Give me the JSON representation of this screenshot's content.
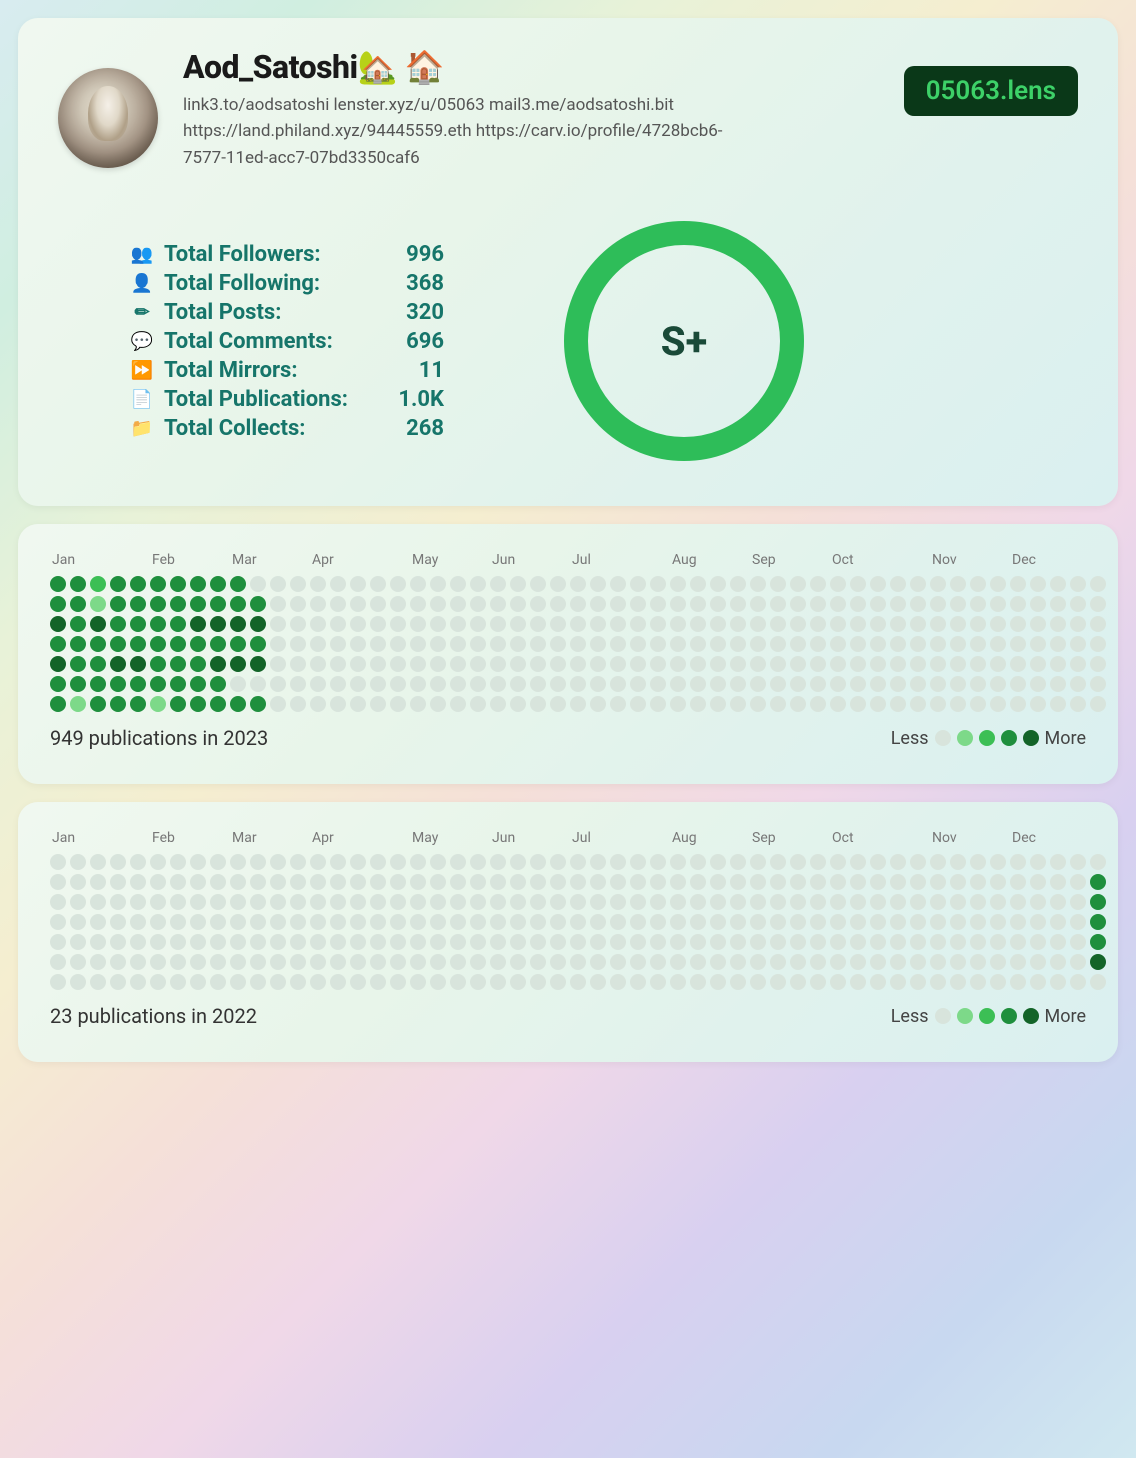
{
  "profile": {
    "display_name": "Aod_Satoshi🏡 🏠",
    "bio": "link3.to/aodsatoshi lenster.xyz/u/05063 mail3.me/aodsatoshi.bit https://land.philand.xyz/94445559.eth https://carv.io/profile/4728bcb6-7577-11ed-acc7-07bd3350caf6",
    "handle_badge": "05063.lens",
    "badge_bg": "#0a3818",
    "badge_fg": "#3dd168"
  },
  "stats": [
    {
      "icon": "followers-icon",
      "label": "Total Followers:",
      "value": "996"
    },
    {
      "icon": "following-icon",
      "label": "Total Following:",
      "value": "368"
    },
    {
      "icon": "posts-icon",
      "label": "Total Posts:",
      "value": "320"
    },
    {
      "icon": "comments-icon",
      "label": "Total Comments:",
      "value": "696"
    },
    {
      "icon": "mirrors-icon",
      "label": "Total Mirrors:",
      "value": "11"
    },
    {
      "icon": "publications-icon",
      "label": "Total Publications:",
      "value": "1.0K"
    },
    {
      "icon": "collects-icon",
      "label": "Total Collects:",
      "value": "268"
    }
  ],
  "stat_color": "#16756a",
  "grade": {
    "letter": "S+",
    "ring_color": "#2ebd59",
    "ring_width": 24,
    "ring_diameter": 240
  },
  "contribution_years": [
    {
      "months": [
        "Jan",
        "Feb",
        "Mar",
        "Apr",
        "May",
        "Jun",
        "Jul",
        "Aug",
        "Sep",
        "Oct",
        "Nov",
        "Dec"
      ],
      "summary": "949 publications in 2023",
      "weeks": 53,
      "active_weeks": 11,
      "levels_palette": [
        "#d8e4dc",
        "#7dd989",
        "#3cbf55",
        "#1f8f3d",
        "#136428"
      ],
      "data": [
        [
          3,
          3,
          2,
          3,
          3,
          3,
          3,
          3,
          3,
          3,
          0,
          0,
          0,
          0,
          0,
          0,
          0,
          0,
          0,
          0,
          0,
          0,
          0,
          0,
          0,
          0,
          0,
          0,
          0,
          0,
          0,
          0,
          0,
          0,
          0,
          0,
          0,
          0,
          0,
          0,
          0,
          0,
          0,
          0,
          0,
          0,
          0,
          0,
          0,
          0,
          0,
          0,
          0
        ],
        [
          3,
          3,
          1,
          3,
          3,
          3,
          3,
          3,
          3,
          3,
          3,
          0,
          0,
          0,
          0,
          0,
          0,
          0,
          0,
          0,
          0,
          0,
          0,
          0,
          0,
          0,
          0,
          0,
          0,
          0,
          0,
          0,
          0,
          0,
          0,
          0,
          0,
          0,
          0,
          0,
          0,
          0,
          0,
          0,
          0,
          0,
          0,
          0,
          0,
          0,
          0,
          0,
          0
        ],
        [
          4,
          3,
          4,
          3,
          3,
          3,
          3,
          4,
          4,
          4,
          4,
          0,
          0,
          0,
          0,
          0,
          0,
          0,
          0,
          0,
          0,
          0,
          0,
          0,
          0,
          0,
          0,
          0,
          0,
          0,
          0,
          0,
          0,
          0,
          0,
          0,
          0,
          0,
          0,
          0,
          0,
          0,
          0,
          0,
          0,
          0,
          0,
          0,
          0,
          0,
          0,
          0,
          0
        ],
        [
          3,
          3,
          3,
          3,
          3,
          3,
          3,
          3,
          3,
          3,
          3,
          0,
          0,
          0,
          0,
          0,
          0,
          0,
          0,
          0,
          0,
          0,
          0,
          0,
          0,
          0,
          0,
          0,
          0,
          0,
          0,
          0,
          0,
          0,
          0,
          0,
          0,
          0,
          0,
          0,
          0,
          0,
          0,
          0,
          0,
          0,
          0,
          0,
          0,
          0,
          0,
          0,
          0
        ],
        [
          4,
          3,
          3,
          4,
          4,
          3,
          3,
          3,
          4,
          4,
          4,
          0,
          0,
          0,
          0,
          0,
          0,
          0,
          0,
          0,
          0,
          0,
          0,
          0,
          0,
          0,
          0,
          0,
          0,
          0,
          0,
          0,
          0,
          0,
          0,
          0,
          0,
          0,
          0,
          0,
          0,
          0,
          0,
          0,
          0,
          0,
          0,
          0,
          0,
          0,
          0,
          0,
          0
        ],
        [
          3,
          3,
          3,
          3,
          3,
          3,
          3,
          3,
          3,
          0,
          0,
          0,
          0,
          0,
          0,
          0,
          0,
          0,
          0,
          0,
          0,
          0,
          0,
          0,
          0,
          0,
          0,
          0,
          0,
          0,
          0,
          0,
          0,
          0,
          0,
          0,
          0,
          0,
          0,
          0,
          0,
          0,
          0,
          0,
          0,
          0,
          0,
          0,
          0,
          0,
          0,
          0,
          0
        ],
        [
          3,
          1,
          3,
          3,
          3,
          1,
          3,
          3,
          3,
          3,
          3,
          0,
          0,
          0,
          0,
          0,
          0,
          0,
          0,
          0,
          0,
          0,
          0,
          0,
          0,
          0,
          0,
          0,
          0,
          0,
          0,
          0,
          0,
          0,
          0,
          0,
          0,
          0,
          0,
          0,
          0,
          0,
          0,
          0,
          0,
          0,
          0,
          0,
          0,
          0,
          0,
          0,
          0
        ]
      ]
    },
    {
      "months": [
        "Jan",
        "Feb",
        "Mar",
        "Apr",
        "May",
        "Jun",
        "Jul",
        "Aug",
        "Sep",
        "Oct",
        "Nov",
        "Dec"
      ],
      "summary": "23 publications in 2022",
      "weeks": 53,
      "levels_palette": [
        "#d8e4dc",
        "#7dd989",
        "#3cbf55",
        "#1f8f3d",
        "#136428"
      ],
      "data": [
        [
          0,
          0,
          0,
          0,
          0,
          0,
          0,
          0,
          0,
          0,
          0,
          0,
          0,
          0,
          0,
          0,
          0,
          0,
          0,
          0,
          0,
          0,
          0,
          0,
          0,
          0,
          0,
          0,
          0,
          0,
          0,
          0,
          0,
          0,
          0,
          0,
          0,
          0,
          0,
          0,
          0,
          0,
          0,
          0,
          0,
          0,
          0,
          0,
          0,
          0,
          0,
          0,
          0
        ],
        [
          0,
          0,
          0,
          0,
          0,
          0,
          0,
          0,
          0,
          0,
          0,
          0,
          0,
          0,
          0,
          0,
          0,
          0,
          0,
          0,
          0,
          0,
          0,
          0,
          0,
          0,
          0,
          0,
          0,
          0,
          0,
          0,
          0,
          0,
          0,
          0,
          0,
          0,
          0,
          0,
          0,
          0,
          0,
          0,
          0,
          0,
          0,
          0,
          0,
          0,
          0,
          0,
          3
        ],
        [
          0,
          0,
          0,
          0,
          0,
          0,
          0,
          0,
          0,
          0,
          0,
          0,
          0,
          0,
          0,
          0,
          0,
          0,
          0,
          0,
          0,
          0,
          0,
          0,
          0,
          0,
          0,
          0,
          0,
          0,
          0,
          0,
          0,
          0,
          0,
          0,
          0,
          0,
          0,
          0,
          0,
          0,
          0,
          0,
          0,
          0,
          0,
          0,
          0,
          0,
          0,
          0,
          3
        ],
        [
          0,
          0,
          0,
          0,
          0,
          0,
          0,
          0,
          0,
          0,
          0,
          0,
          0,
          0,
          0,
          0,
          0,
          0,
          0,
          0,
          0,
          0,
          0,
          0,
          0,
          0,
          0,
          0,
          0,
          0,
          0,
          0,
          0,
          0,
          0,
          0,
          0,
          0,
          0,
          0,
          0,
          0,
          0,
          0,
          0,
          0,
          0,
          0,
          0,
          0,
          0,
          0,
          3
        ],
        [
          0,
          0,
          0,
          0,
          0,
          0,
          0,
          0,
          0,
          0,
          0,
          0,
          0,
          0,
          0,
          0,
          0,
          0,
          0,
          0,
          0,
          0,
          0,
          0,
          0,
          0,
          0,
          0,
          0,
          0,
          0,
          0,
          0,
          0,
          0,
          0,
          0,
          0,
          0,
          0,
          0,
          0,
          0,
          0,
          0,
          0,
          0,
          0,
          0,
          0,
          0,
          0,
          3
        ],
        [
          0,
          0,
          0,
          0,
          0,
          0,
          0,
          0,
          0,
          0,
          0,
          0,
          0,
          0,
          0,
          0,
          0,
          0,
          0,
          0,
          0,
          0,
          0,
          0,
          0,
          0,
          0,
          0,
          0,
          0,
          0,
          0,
          0,
          0,
          0,
          0,
          0,
          0,
          0,
          0,
          0,
          0,
          0,
          0,
          0,
          0,
          0,
          0,
          0,
          0,
          0,
          0,
          4
        ],
        [
          0,
          0,
          0,
          0,
          0,
          0,
          0,
          0,
          0,
          0,
          0,
          0,
          0,
          0,
          0,
          0,
          0,
          0,
          0,
          0,
          0,
          0,
          0,
          0,
          0,
          0,
          0,
          0,
          0,
          0,
          0,
          0,
          0,
          0,
          0,
          0,
          0,
          0,
          0,
          0,
          0,
          0,
          0,
          0,
          0,
          0,
          0,
          0,
          0,
          0,
          0,
          0,
          0
        ]
      ]
    }
  ],
  "legend": {
    "less": "Less",
    "more": "More"
  },
  "icons": {
    "followers-icon": "👥",
    "following-icon": "👤",
    "posts-icon": "✏",
    "comments-icon": "💬",
    "mirrors-icon": "⏩",
    "publications-icon": "📄",
    "collects-icon": "📁"
  }
}
